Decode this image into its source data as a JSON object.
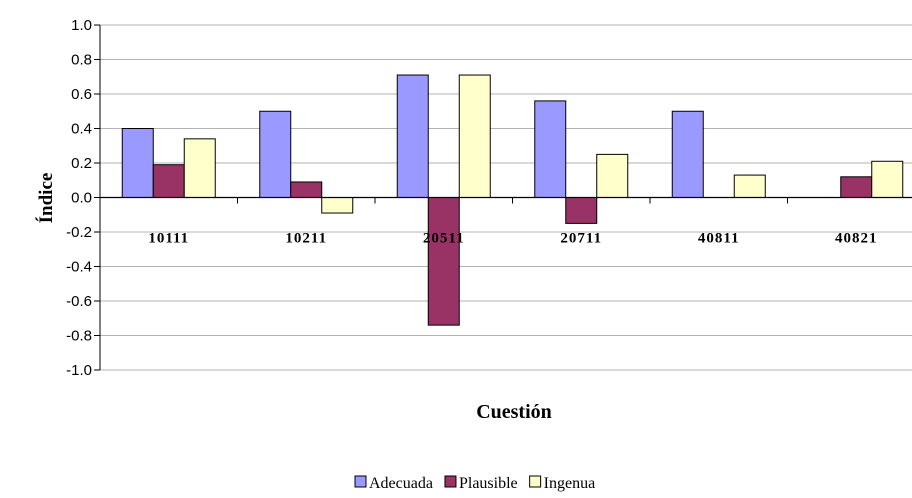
{
  "chart_data": {
    "type": "bar",
    "categories": [
      "10111",
      "10211",
      "20511",
      "20711",
      "40811",
      "40821"
    ],
    "series": [
      {
        "name": "Adecuada",
        "values": [
          0.4,
          0.5,
          0.71,
          0.56,
          0.5,
          0.0
        ],
        "color": "#9999ff"
      },
      {
        "name": "Plausible",
        "values": [
          0.19,
          0.09,
          -0.74,
          -0.15,
          0.0,
          0.12
        ],
        "color": "#993366"
      },
      {
        "name": "Ingenua",
        "values": [
          0.34,
          -0.09,
          0.71,
          0.25,
          0.13,
          0.21
        ],
        "color": "#ffffcc"
      }
    ],
    "xlabel": "Cuestión",
    "ylabel": "Índice",
    "ylim": [
      -1.0,
      1.0
    ],
    "yticks": [
      "1.0",
      "0.8",
      "0.6",
      "0.4",
      "0.2",
      "0.0",
      "-0.2",
      "-0.4",
      "-0.6",
      "-0.8",
      "-1.0"
    ],
    "grid": true,
    "legend_position": "bottom"
  }
}
